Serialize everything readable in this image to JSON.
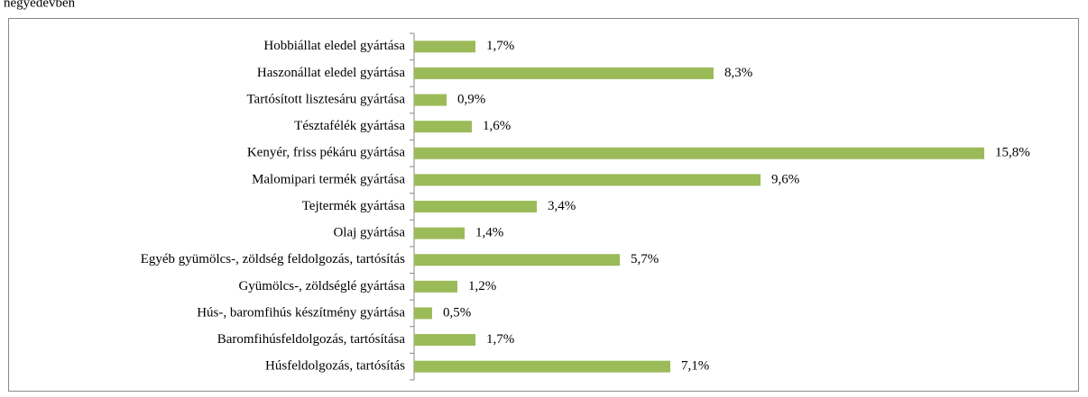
{
  "heading": "negyedévben",
  "chart_data": {
    "type": "hbar",
    "categories": [
      "Hobbiállat eledel gyártása",
      "Haszonállat eledel gyártása",
      "Tartósított lisztesáru gyártása",
      "Tésztafélék gyártása",
      "Kenyér, friss pékáru gyártása",
      "Malomipari termék gyártása",
      "Tejtermék gyártása",
      "Olaj gyártása",
      "Egyéb gyümölcs-, zöldség feldolgozás, tartósítás",
      "Gyümölcs-, zöldséglé gyártása",
      "Hús-, baromfihús készítmény gyártása",
      "Baromfihúsfeldolgozás, tartósítása",
      "Húsfeldolgozás, tartósítás"
    ],
    "values": [
      1.7,
      8.3,
      0.9,
      1.6,
      15.8,
      9.6,
      3.4,
      1.4,
      5.7,
      1.2,
      0.5,
      1.7,
      7.1
    ],
    "value_labels": [
      "1,7%",
      "8,3%",
      "0,9%",
      "1,6%",
      "15,8%",
      "9,6%",
      "3,4%",
      "1,4%",
      "5,7%",
      "1,2%",
      "0,5%",
      "1,7%",
      "7,1%"
    ],
    "color": "#9bbb59",
    "xlim": [
      0,
      18
    ]
  }
}
